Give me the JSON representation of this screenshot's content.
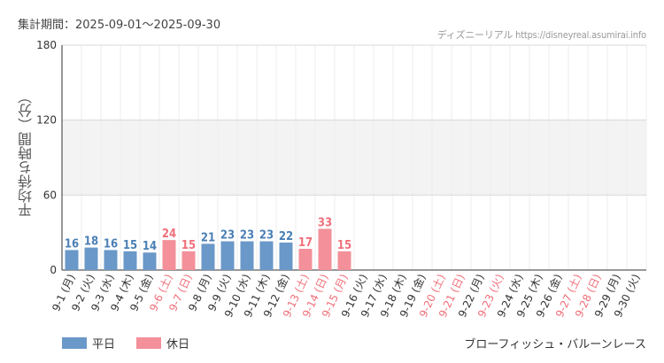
{
  "header": {
    "period_label": "集計期間：2025-09-01～2025-09-30",
    "credit": "ディズニーリアル https://disneyreal.asumirai.info"
  },
  "legend": {
    "weekday_label": "平日",
    "holiday_label": "休日"
  },
  "attraction_name": "ブローフィッシュ・バルーンレース",
  "colors": {
    "weekday": "#6a98c8",
    "holiday": "#f3909a",
    "weekday_label": "#4a7fb5",
    "holiday_label": "#ef6f7a",
    "band": "#f3f3f3"
  },
  "chart_data": {
    "type": "bar",
    "ylabel": "平均待ち時間（分）",
    "ylim": [
      0,
      180
    ],
    "yticks": [
      0,
      60,
      120,
      180
    ],
    "band": [
      60,
      120
    ],
    "grid": true,
    "categories": [
      "9-1 (月)",
      "9-2 (火)",
      "9-3 (水)",
      "9-4 (木)",
      "9-5 (金)",
      "9-6 (土)",
      "9-7 (日)",
      "9-8 (月)",
      "9-9 (火)",
      "9-10 (水)",
      "9-11 (木)",
      "9-12 (金)",
      "9-13 (土)",
      "9-14 (日)",
      "9-15 (月)",
      "9-16 (火)",
      "9-17 (水)",
      "9-18 (木)",
      "9-19 (金)",
      "9-20 (土)",
      "9-21 (日)",
      "9-22 (月)",
      "9-23 (火)",
      "9-24 (水)",
      "9-25 (木)",
      "9-26 (金)",
      "9-27 (土)",
      "9-28 (日)",
      "9-29 (月)",
      "9-30 (火)"
    ],
    "holiday": [
      false,
      false,
      false,
      false,
      false,
      true,
      true,
      false,
      false,
      false,
      false,
      false,
      true,
      true,
      true,
      false,
      false,
      false,
      false,
      true,
      true,
      false,
      true,
      false,
      false,
      false,
      true,
      true,
      false,
      false
    ],
    "values": [
      16,
      18,
      16,
      15,
      14,
      24,
      15,
      21,
      23,
      23,
      23,
      22,
      17,
      33,
      15,
      null,
      null,
      null,
      null,
      null,
      null,
      null,
      null,
      null,
      null,
      null,
      null,
      null,
      null,
      null
    ]
  }
}
